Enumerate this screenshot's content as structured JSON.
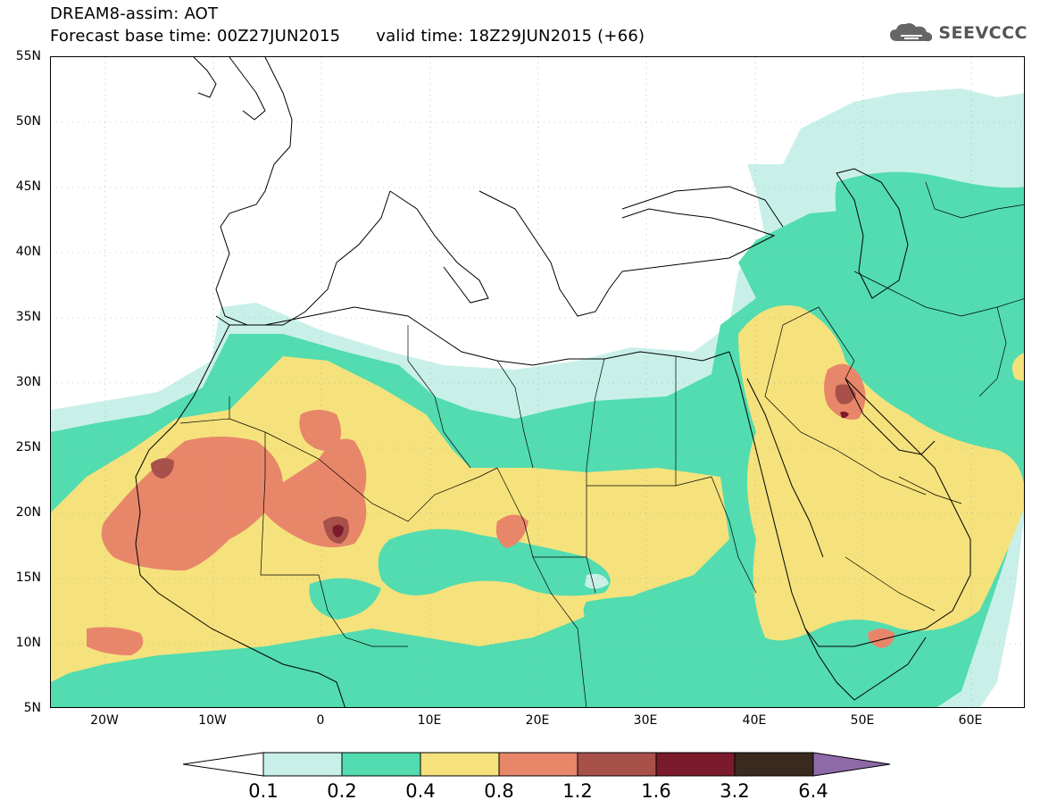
{
  "title": {
    "line1": "DREAM8-assim: AOT",
    "base_time": "Forecast base time: 00Z27JUN2015",
    "valid_time": "valid time: 18Z29JUN2015 (+66)"
  },
  "logo": {
    "text": "SEEVCCC",
    "icon": "cloud-icon"
  },
  "axes": {
    "lat_labels": [
      "55N",
      "50N",
      "45N",
      "40N",
      "35N",
      "30N",
      "25N",
      "20N",
      "15N",
      "10N",
      "5N"
    ],
    "lon_labels": [
      "20W",
      "10W",
      "0",
      "10E",
      "20E",
      "30E",
      "40E",
      "50E",
      "60E"
    ],
    "lat_range": [
      5,
      55
    ],
    "lon_range": [
      -25,
      65
    ]
  },
  "legend": {
    "labels": [
      "0.1",
      "0.2",
      "0.4",
      "0.8",
      "1.2",
      "1.6",
      "3.2",
      "6.4"
    ],
    "colors": [
      "#ffffff",
      "#c8f0e8",
      "#52dcb0",
      "#f5e27c",
      "#e8866a",
      "#a8504a",
      "#7a1a2a",
      "#3a2a1e",
      "#8e6aa8"
    ]
  },
  "map": {
    "field": "Aerosol Optical Thickness",
    "colors": {
      "low": "#c8f0e8",
      "light": "#52dcb0",
      "moderate": "#f5e27c",
      "high": "#e8866a",
      "very_high": "#a8504a",
      "extreme": "#7a1a2a"
    }
  }
}
